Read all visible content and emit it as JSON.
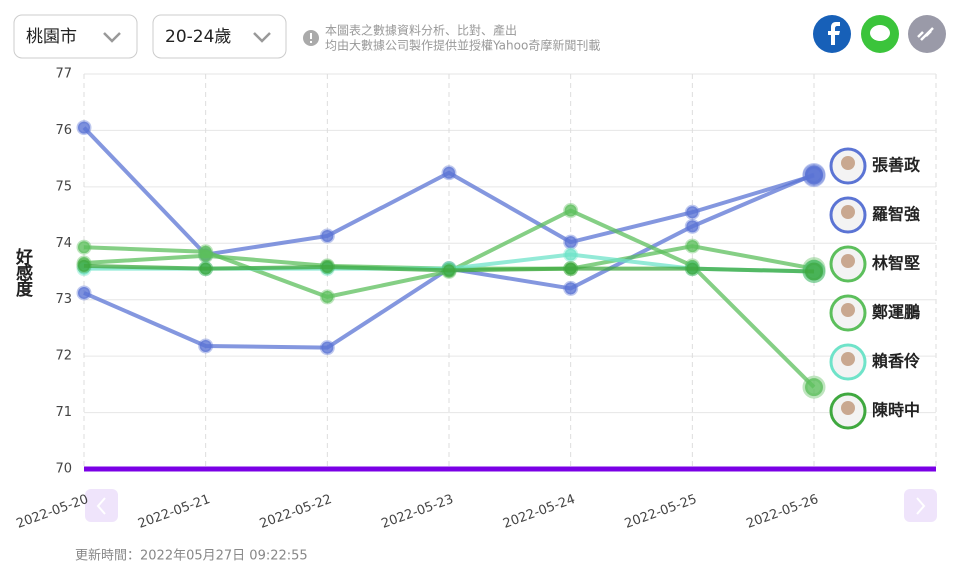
{
  "filters": [
    "桃園市",
    "20-24歲"
  ],
  "note": [
    "本圖表之數據資料分析、比對、產出",
    "均由大數據公司製作提供並授權Yahoo奇摩新聞刊載"
  ],
  "updated": "更新時間：2022年05月27日 09:22:55",
  "chart_data": {
    "type": "line",
    "ylabel": "好感度",
    "x": [
      "2022-05-20",
      "2022-05-21",
      "2022-05-22",
      "2022-05-23",
      "2022-05-24",
      "2022-05-25",
      "2022-05-26"
    ],
    "ylim": [
      70,
      77
    ],
    "yticks": [
      70,
      71,
      72,
      73,
      74,
      75,
      76,
      77
    ],
    "grid": true,
    "series": [
      {
        "name": "張善政",
        "color": "#5b74d4",
        "values": [
          76.05,
          73.8,
          74.13,
          75.25,
          74.02,
          74.55,
          75.2
        ]
      },
      {
        "name": "羅智強",
        "color": "#5b74d4",
        "values": [
          73.12,
          72.18,
          72.15,
          73.55,
          73.2,
          74.3,
          75.22
        ]
      },
      {
        "name": "林智堅",
        "color": "#5cbf5c",
        "values": [
          73.93,
          73.85,
          73.05,
          73.5,
          74.58,
          73.6,
          71.45
        ]
      },
      {
        "name": "鄭運鵬",
        "color": "#5cbf5c",
        "values": [
          73.65,
          73.78,
          73.6,
          73.55,
          73.55,
          73.95,
          73.55
        ]
      },
      {
        "name": "賴香伶",
        "color": "#6fe3c9",
        "values": [
          73.55,
          73.55,
          73.55,
          73.55,
          73.8,
          73.55,
          73.5
        ]
      },
      {
        "name": "陳時中",
        "color": "#3fa83f",
        "values": [
          73.6,
          73.55,
          73.58,
          73.52,
          73.55,
          73.55,
          73.5
        ]
      }
    ]
  }
}
